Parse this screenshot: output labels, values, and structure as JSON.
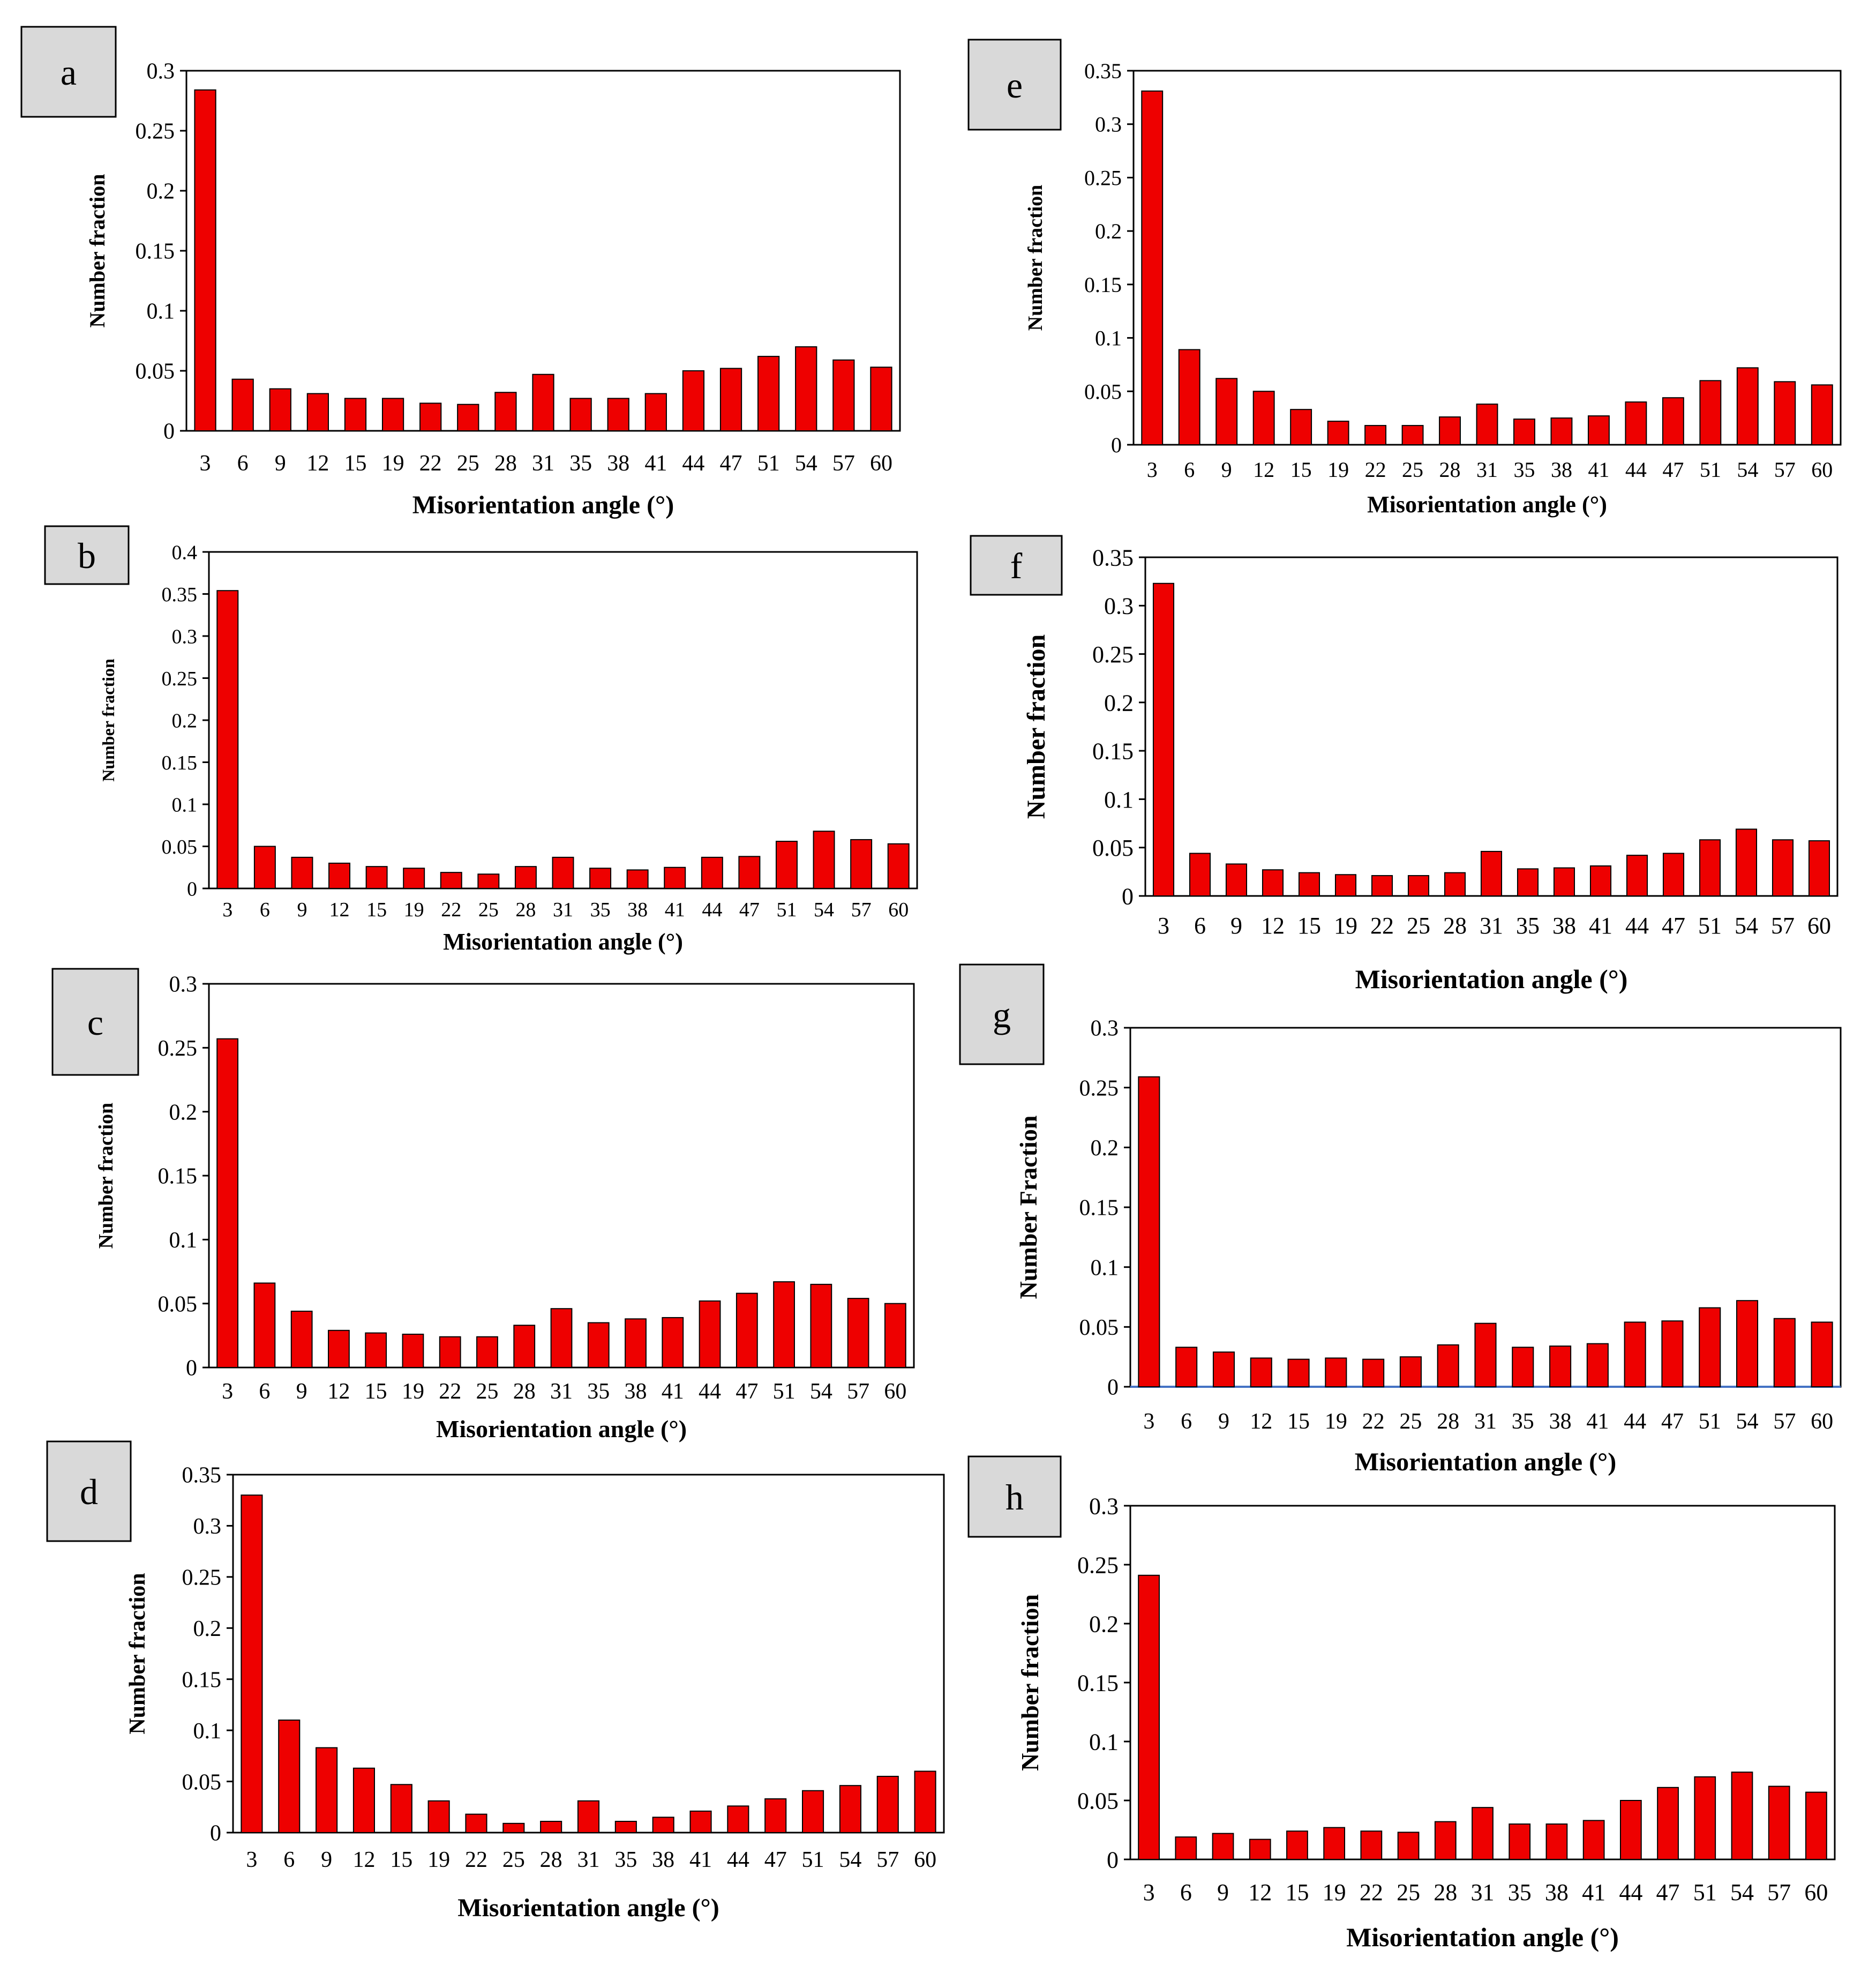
{
  "figure": {
    "colors": {
      "bar_fill": "#ee0000",
      "bar_edge": "#000000",
      "axis": "#000000",
      "label_box_fill": "#d9d9d9",
      "baseline_g": "#4472c4",
      "tick_label_c": "#7f7f7f"
    }
  },
  "chart_data": [
    {
      "panel": "a",
      "type": "bar",
      "title": "",
      "xlabel": "Misorientation angle (°)",
      "ylabel": "Number fraction",
      "categories": [
        "3",
        "6",
        "9",
        "12",
        "15",
        "19",
        "22",
        "25",
        "28",
        "31",
        "35",
        "38",
        "41",
        "44",
        "47",
        "51",
        "54",
        "57",
        "60"
      ],
      "values": [
        0.284,
        0.043,
        0.035,
        0.031,
        0.027,
        0.027,
        0.023,
        0.022,
        0.032,
        0.047,
        0.027,
        0.027,
        0.031,
        0.05,
        0.052,
        0.062,
        0.07,
        0.059,
        0.053
      ],
      "ylim": [
        0,
        0.3
      ],
      "yticks": [
        "0",
        "0.05",
        "0.1",
        "0.15",
        "0.2",
        "0.25",
        "0.3"
      ],
      "grid": false
    },
    {
      "panel": "b",
      "type": "bar",
      "title": "",
      "xlabel": "Misorientation angle (°)",
      "ylabel": "Number fraction",
      "categories": [
        "3",
        "6",
        "9",
        "12",
        "15",
        "19",
        "22",
        "25",
        "28",
        "31",
        "35",
        "38",
        "41",
        "44",
        "47",
        "51",
        "54",
        "57",
        "60"
      ],
      "values": [
        0.354,
        0.05,
        0.037,
        0.03,
        0.026,
        0.024,
        0.019,
        0.017,
        0.026,
        0.037,
        0.024,
        0.022,
        0.025,
        0.037,
        0.038,
        0.056,
        0.068,
        0.058,
        0.053
      ],
      "ylim": [
        0,
        0.4
      ],
      "yticks": [
        "0",
        "0.05",
        "0.1",
        "0.15",
        "0.2",
        "0.25",
        "0.3",
        "0.35",
        "0.4"
      ],
      "grid": false
    },
    {
      "panel": "c",
      "type": "bar",
      "title": "",
      "xlabel": "Misorientation angle (°)",
      "ylabel": "Number fraction",
      "categories": [
        "3",
        "6",
        "9",
        "12",
        "15",
        "19",
        "22",
        "25",
        "28",
        "31",
        "35",
        "38",
        "41",
        "44",
        "47",
        "51",
        "54",
        "57",
        "60"
      ],
      "values": [
        0.257,
        0.066,
        0.044,
        0.029,
        0.027,
        0.026,
        0.024,
        0.024,
        0.033,
        0.046,
        0.035,
        0.038,
        0.039,
        0.052,
        0.058,
        0.067,
        0.065,
        0.054,
        0.05
      ],
      "ylim": [
        0,
        0.3
      ],
      "yticks": [
        "0",
        "0.05",
        "0.1",
        "0.15",
        "0.2",
        "0.25",
        "0.3"
      ],
      "grid": false
    },
    {
      "panel": "d",
      "type": "bar",
      "title": "",
      "xlabel": "Misorientation angle (°)",
      "ylabel": "Number fraction",
      "categories": [
        "3",
        "6",
        "9",
        "12",
        "15",
        "19",
        "22",
        "25",
        "28",
        "31",
        "35",
        "38",
        "41",
        "44",
        "47",
        "51",
        "54",
        "57",
        "60"
      ],
      "values": [
        0.33,
        0.11,
        0.083,
        0.063,
        0.047,
        0.031,
        0.018,
        0.009,
        0.011,
        0.031,
        0.011,
        0.015,
        0.021,
        0.026,
        0.033,
        0.041,
        0.046,
        0.055,
        0.06
      ],
      "ylim": [
        0,
        0.35
      ],
      "yticks": [
        "0",
        "0.05",
        "0.1",
        "0.15",
        "0.2",
        "0.25",
        "0.3",
        "0.35"
      ],
      "grid": false
    },
    {
      "panel": "e",
      "type": "bar",
      "title": "",
      "xlabel": "Misorientation angle (°)",
      "ylabel": "Number fraction",
      "categories": [
        "3",
        "6",
        "9",
        "12",
        "15",
        "19",
        "22",
        "25",
        "28",
        "31",
        "35",
        "38",
        "41",
        "44",
        "47",
        "51",
        "54",
        "57",
        "60"
      ],
      "values": [
        0.331,
        0.089,
        0.062,
        0.05,
        0.033,
        0.022,
        0.018,
        0.018,
        0.026,
        0.038,
        0.024,
        0.025,
        0.027,
        0.04,
        0.044,
        0.06,
        0.072,
        0.059,
        0.056
      ],
      "ylim": [
        0,
        0.35
      ],
      "yticks": [
        "0",
        "0.05",
        "0.1",
        "0.15",
        "0.2",
        "0.25",
        "0.3",
        "0.35"
      ],
      "grid": false
    },
    {
      "panel": "f",
      "type": "bar",
      "title": "",
      "xlabel": "Misorientation angle (°)",
      "ylabel": "Number fraction",
      "categories": [
        "3",
        "6",
        "9",
        "12",
        "15",
        "19",
        "22",
        "25",
        "28",
        "31",
        "35",
        "38",
        "41",
        "44",
        "47",
        "51",
        "54",
        "57",
        "60"
      ],
      "values": [
        0.323,
        0.044,
        0.033,
        0.027,
        0.024,
        0.022,
        0.021,
        0.021,
        0.024,
        0.046,
        0.028,
        0.029,
        0.031,
        0.042,
        0.044,
        0.058,
        0.069,
        0.058,
        0.057
      ],
      "ylim": [
        0,
        0.35
      ],
      "yticks": [
        "0",
        "0.05",
        "0.1",
        "0.15",
        "0.2",
        "0.25",
        "0.3",
        "0.35"
      ],
      "grid": false
    },
    {
      "panel": "g",
      "type": "bar",
      "title": "",
      "xlabel": "Misorientation angle (°)",
      "ylabel": "Number Fraction",
      "categories": [
        "3",
        "6",
        "9",
        "12",
        "15",
        "19",
        "22",
        "25",
        "28",
        "31",
        "35",
        "38",
        "41",
        "44",
        "47",
        "51",
        "54",
        "57",
        "60"
      ],
      "values": [
        0.259,
        0.033,
        0.029,
        0.024,
        0.023,
        0.024,
        0.023,
        0.025,
        0.035,
        0.053,
        0.033,
        0.034,
        0.036,
        0.054,
        0.055,
        0.066,
        0.072,
        0.057,
        0.054
      ],
      "ylim": [
        0,
        0.3
      ],
      "yticks": [
        "0",
        "0.05",
        "0.1",
        "0.15",
        "0.2",
        "0.25",
        "0.3"
      ],
      "grid": false
    },
    {
      "panel": "h",
      "type": "bar",
      "title": "",
      "xlabel": "Misorientation angle (°)",
      "ylabel": "Number fraction",
      "categories": [
        "3",
        "6",
        "9",
        "12",
        "15",
        "19",
        "22",
        "25",
        "28",
        "31",
        "35",
        "38",
        "41",
        "44",
        "47",
        "51",
        "54",
        "57",
        "60"
      ],
      "values": [
        0.241,
        0.019,
        0.022,
        0.017,
        0.024,
        0.027,
        0.024,
        0.023,
        0.032,
        0.044,
        0.03,
        0.03,
        0.033,
        0.05,
        0.061,
        0.07,
        0.074,
        0.062,
        0.057
      ],
      "ylim": [
        0,
        0.3
      ],
      "yticks": [
        "0",
        "0.05",
        "0.1",
        "0.15",
        "0.2",
        "0.25",
        "0.3"
      ],
      "grid": false
    }
  ]
}
